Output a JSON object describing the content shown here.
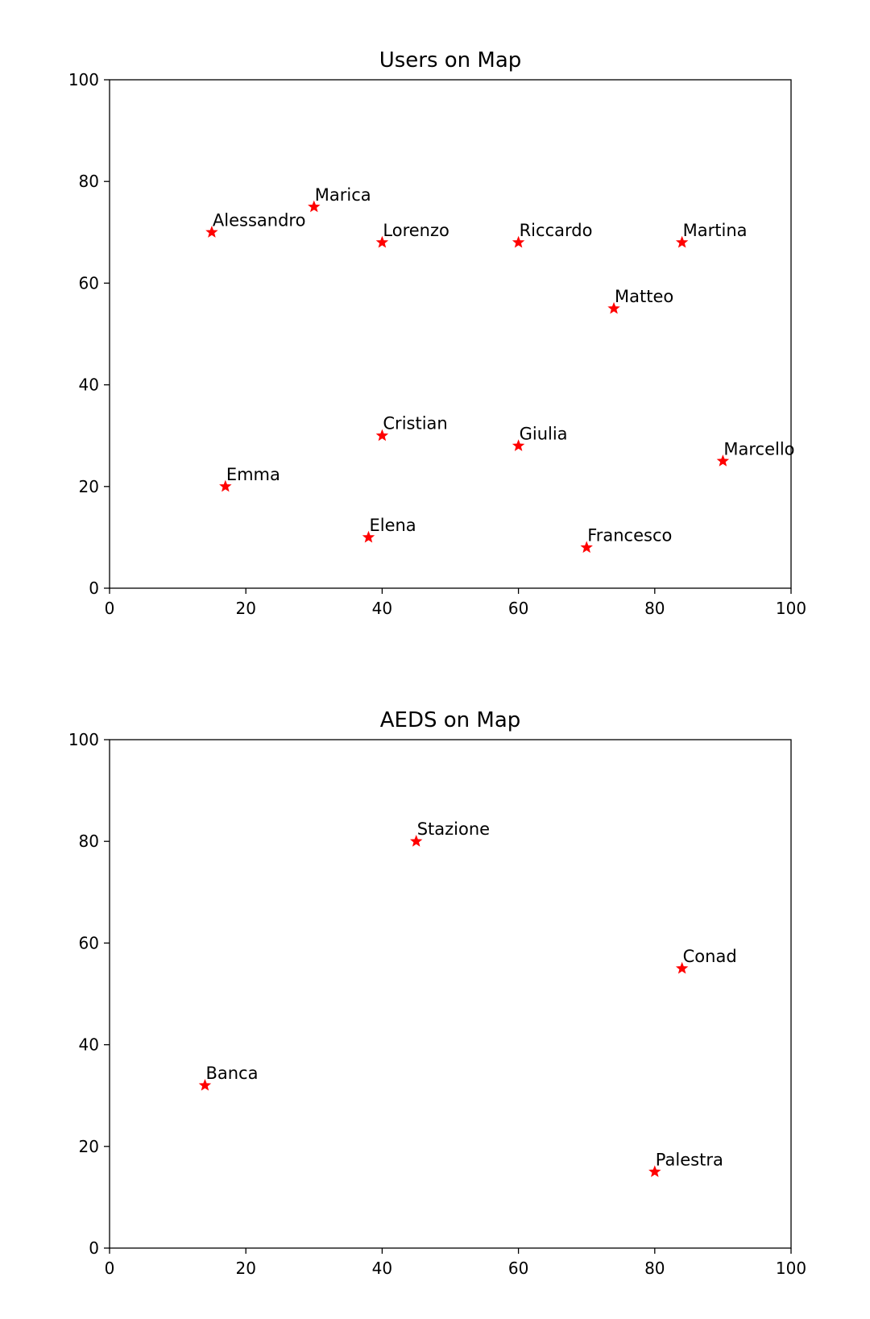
{
  "chart_data": [
    {
      "type": "scatter",
      "title": "Users on Map",
      "xlabel": "",
      "ylabel": "",
      "xlim": [
        0,
        100
      ],
      "ylim": [
        0,
        100
      ],
      "xticks": [
        "0",
        "20",
        "40",
        "60",
        "80",
        "100"
      ],
      "yticks": [
        "0",
        "20",
        "40",
        "60",
        "80",
        "100"
      ],
      "grid": false,
      "marker": "star",
      "marker_color": "#ff0000",
      "points": [
        {
          "label": "Alessandro",
          "x": 15,
          "y": 70
        },
        {
          "label": "Marica",
          "x": 30,
          "y": 75
        },
        {
          "label": "Lorenzo",
          "x": 40,
          "y": 68
        },
        {
          "label": "Riccardo",
          "x": 60,
          "y": 68
        },
        {
          "label": "Martina",
          "x": 84,
          "y": 68
        },
        {
          "label": "Matteo",
          "x": 74,
          "y": 55
        },
        {
          "label": "Cristian",
          "x": 40,
          "y": 30
        },
        {
          "label": "Giulia",
          "x": 60,
          "y": 28
        },
        {
          "label": "Marcello",
          "x": 90,
          "y": 25
        },
        {
          "label": "Emma",
          "x": 17,
          "y": 20
        },
        {
          "label": "Elena",
          "x": 38,
          "y": 10
        },
        {
          "label": "Francesco",
          "x": 70,
          "y": 8
        }
      ]
    },
    {
      "type": "scatter",
      "title": "AEDS on Map",
      "xlabel": "",
      "ylabel": "",
      "xlim": [
        0,
        100
      ],
      "ylim": [
        0,
        100
      ],
      "xticks": [
        "0",
        "20",
        "40",
        "60",
        "80",
        "100"
      ],
      "yticks": [
        "0",
        "20",
        "40",
        "60",
        "80",
        "100"
      ],
      "grid": false,
      "marker": "star",
      "marker_color": "#ff0000",
      "points": [
        {
          "label": "Stazione",
          "x": 45,
          "y": 80
        },
        {
          "label": "Conad",
          "x": 84,
          "y": 55
        },
        {
          "label": "Banca",
          "x": 14,
          "y": 32
        },
        {
          "label": "Palestra",
          "x": 80,
          "y": 15
        }
      ]
    }
  ]
}
